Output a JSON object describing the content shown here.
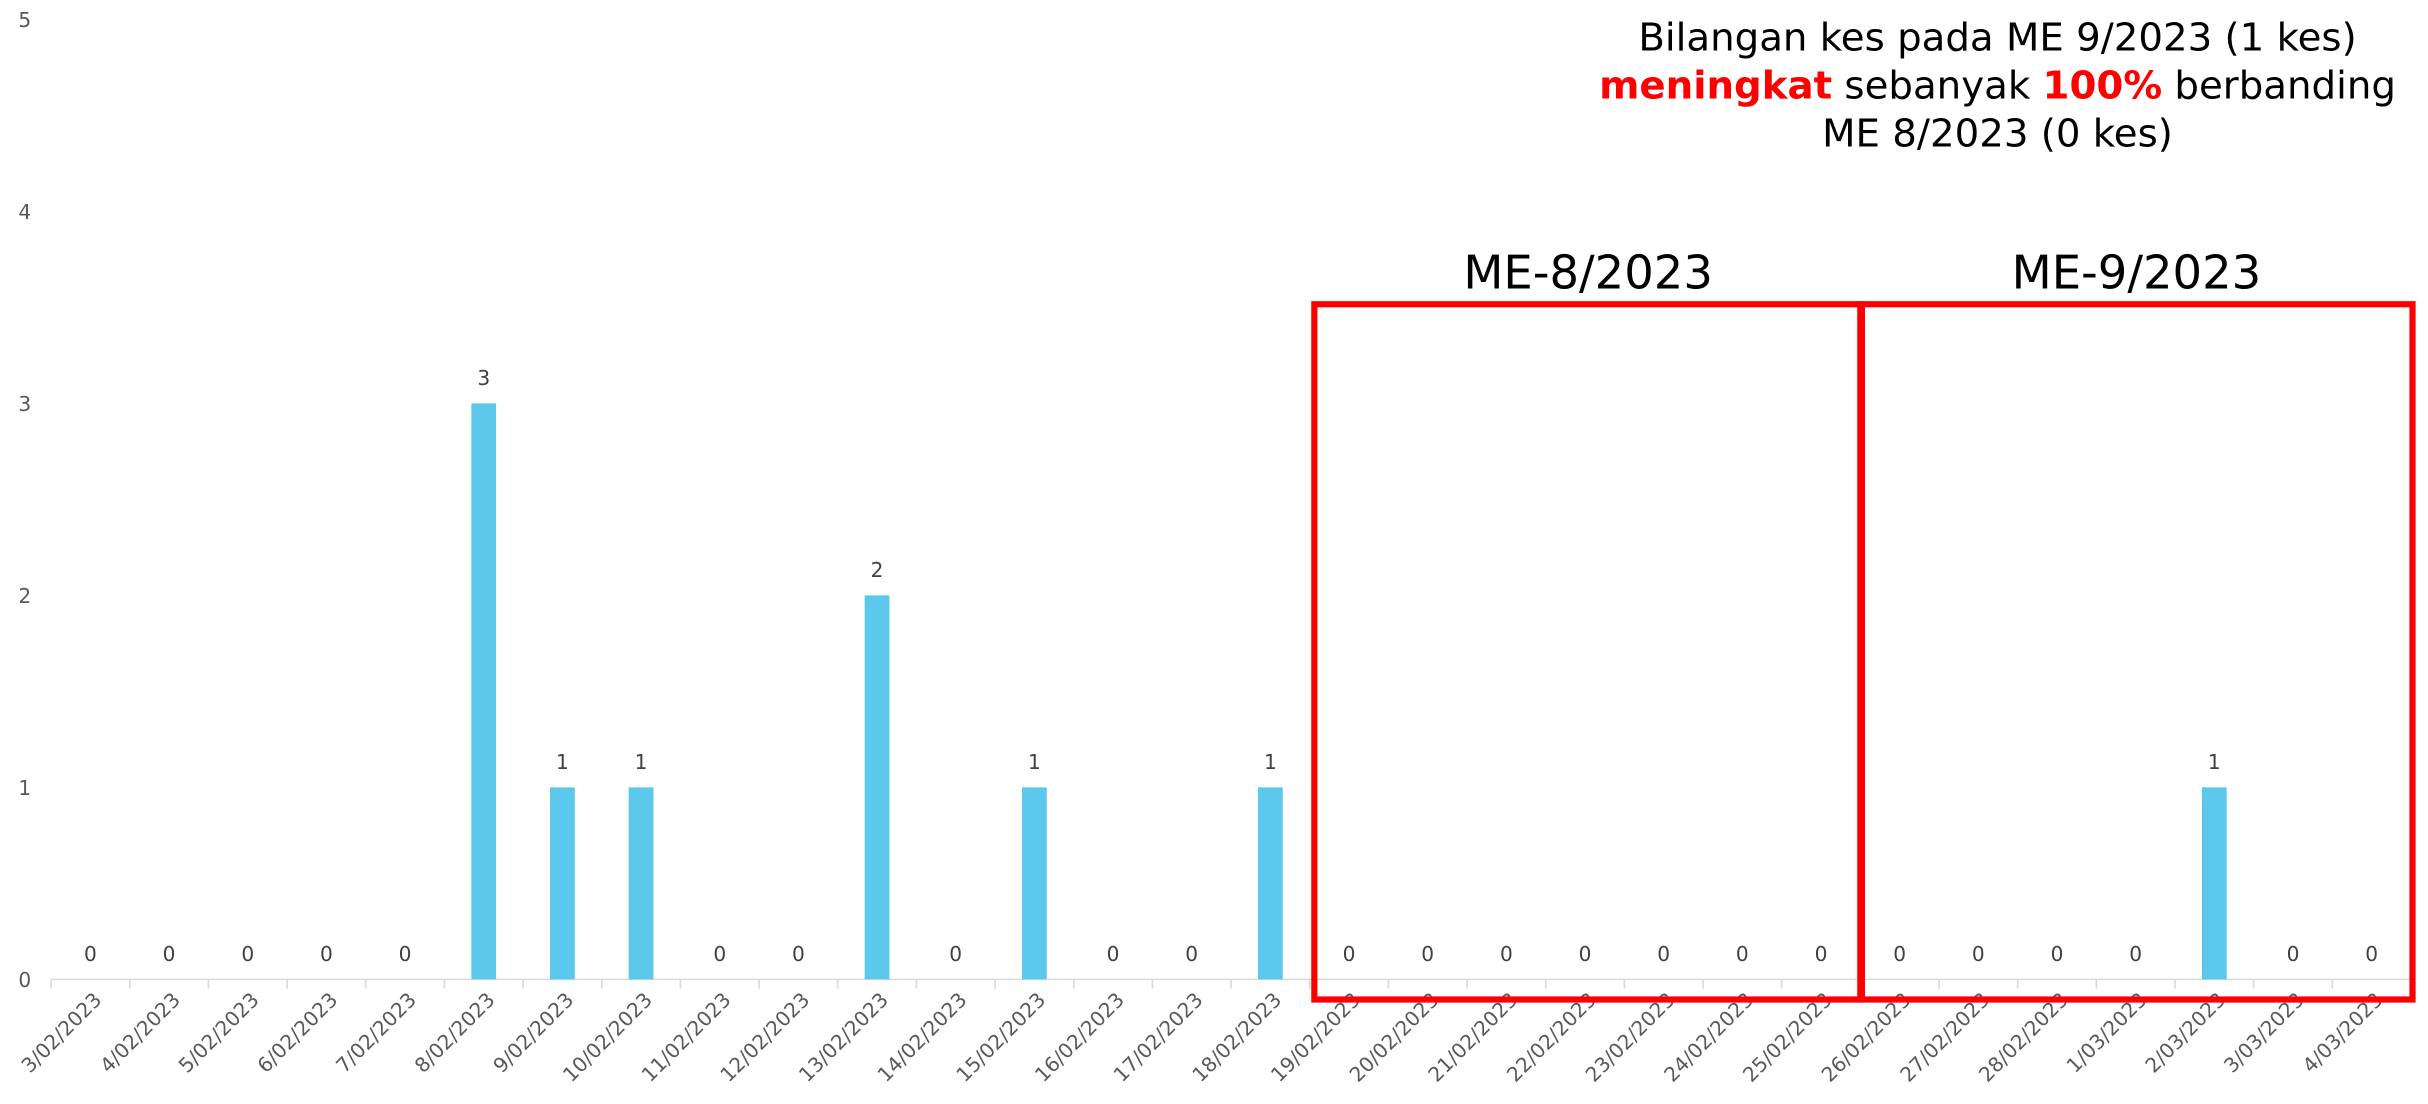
{
  "chart_data": {
    "type": "bar",
    "categories": [
      "3/02/2023",
      "4/02/2023",
      "5/02/2023",
      "6/02/2023",
      "7/02/2023",
      "8/02/2023",
      "9/02/2023",
      "10/02/2023",
      "11/02/2023",
      "12/02/2023",
      "13/02/2023",
      "14/02/2023",
      "15/02/2023",
      "16/02/2023",
      "17/02/2023",
      "18/02/2023",
      "19/02/2023",
      "20/02/2023",
      "21/02/2023",
      "22/02/2023",
      "23/02/2023",
      "24/02/2023",
      "25/02/2023",
      "26/02/2023",
      "27/02/2023",
      "28/02/2023",
      "1/03/2023",
      "2/03/2023",
      "3/03/2023",
      "4/03/2023"
    ],
    "values": [
      0,
      0,
      0,
      0,
      0,
      3,
      1,
      1,
      0,
      0,
      2,
      0,
      1,
      0,
      0,
      1,
      0,
      0,
      0,
      0,
      0,
      0,
      0,
      0,
      0,
      0,
      0,
      1,
      0,
      0
    ],
    "color": "#5bc8ec",
    "ylim": [
      0,
      5
    ],
    "yticks": [
      0,
      1,
      2,
      3,
      4,
      5
    ],
    "grid": false,
    "annotation": [
      [
        {
          "text": "Bilangan kes pada ME 9/2023 (1 kes)"
        }
      ],
      [
        {
          "text": "meningkat",
          "color": "#ff0000",
          "bold": true
        },
        {
          "text": " sebanyak "
        },
        {
          "text": "100%",
          "color": "#ff0000",
          "bold": true
        },
        {
          "text": " berbanding"
        }
      ],
      [
        {
          "text": "ME 8/2023 (0 kes)"
        }
      ]
    ],
    "regions": [
      {
        "label": "ME-8/2023",
        "color": "#ff0000",
        "from": "19/02/2023",
        "to": "25/02/2023"
      },
      {
        "label": "ME-9/2023",
        "color": "#ff0000",
        "from": "26/02/2023",
        "to": "4/03/2023"
      }
    ]
  }
}
